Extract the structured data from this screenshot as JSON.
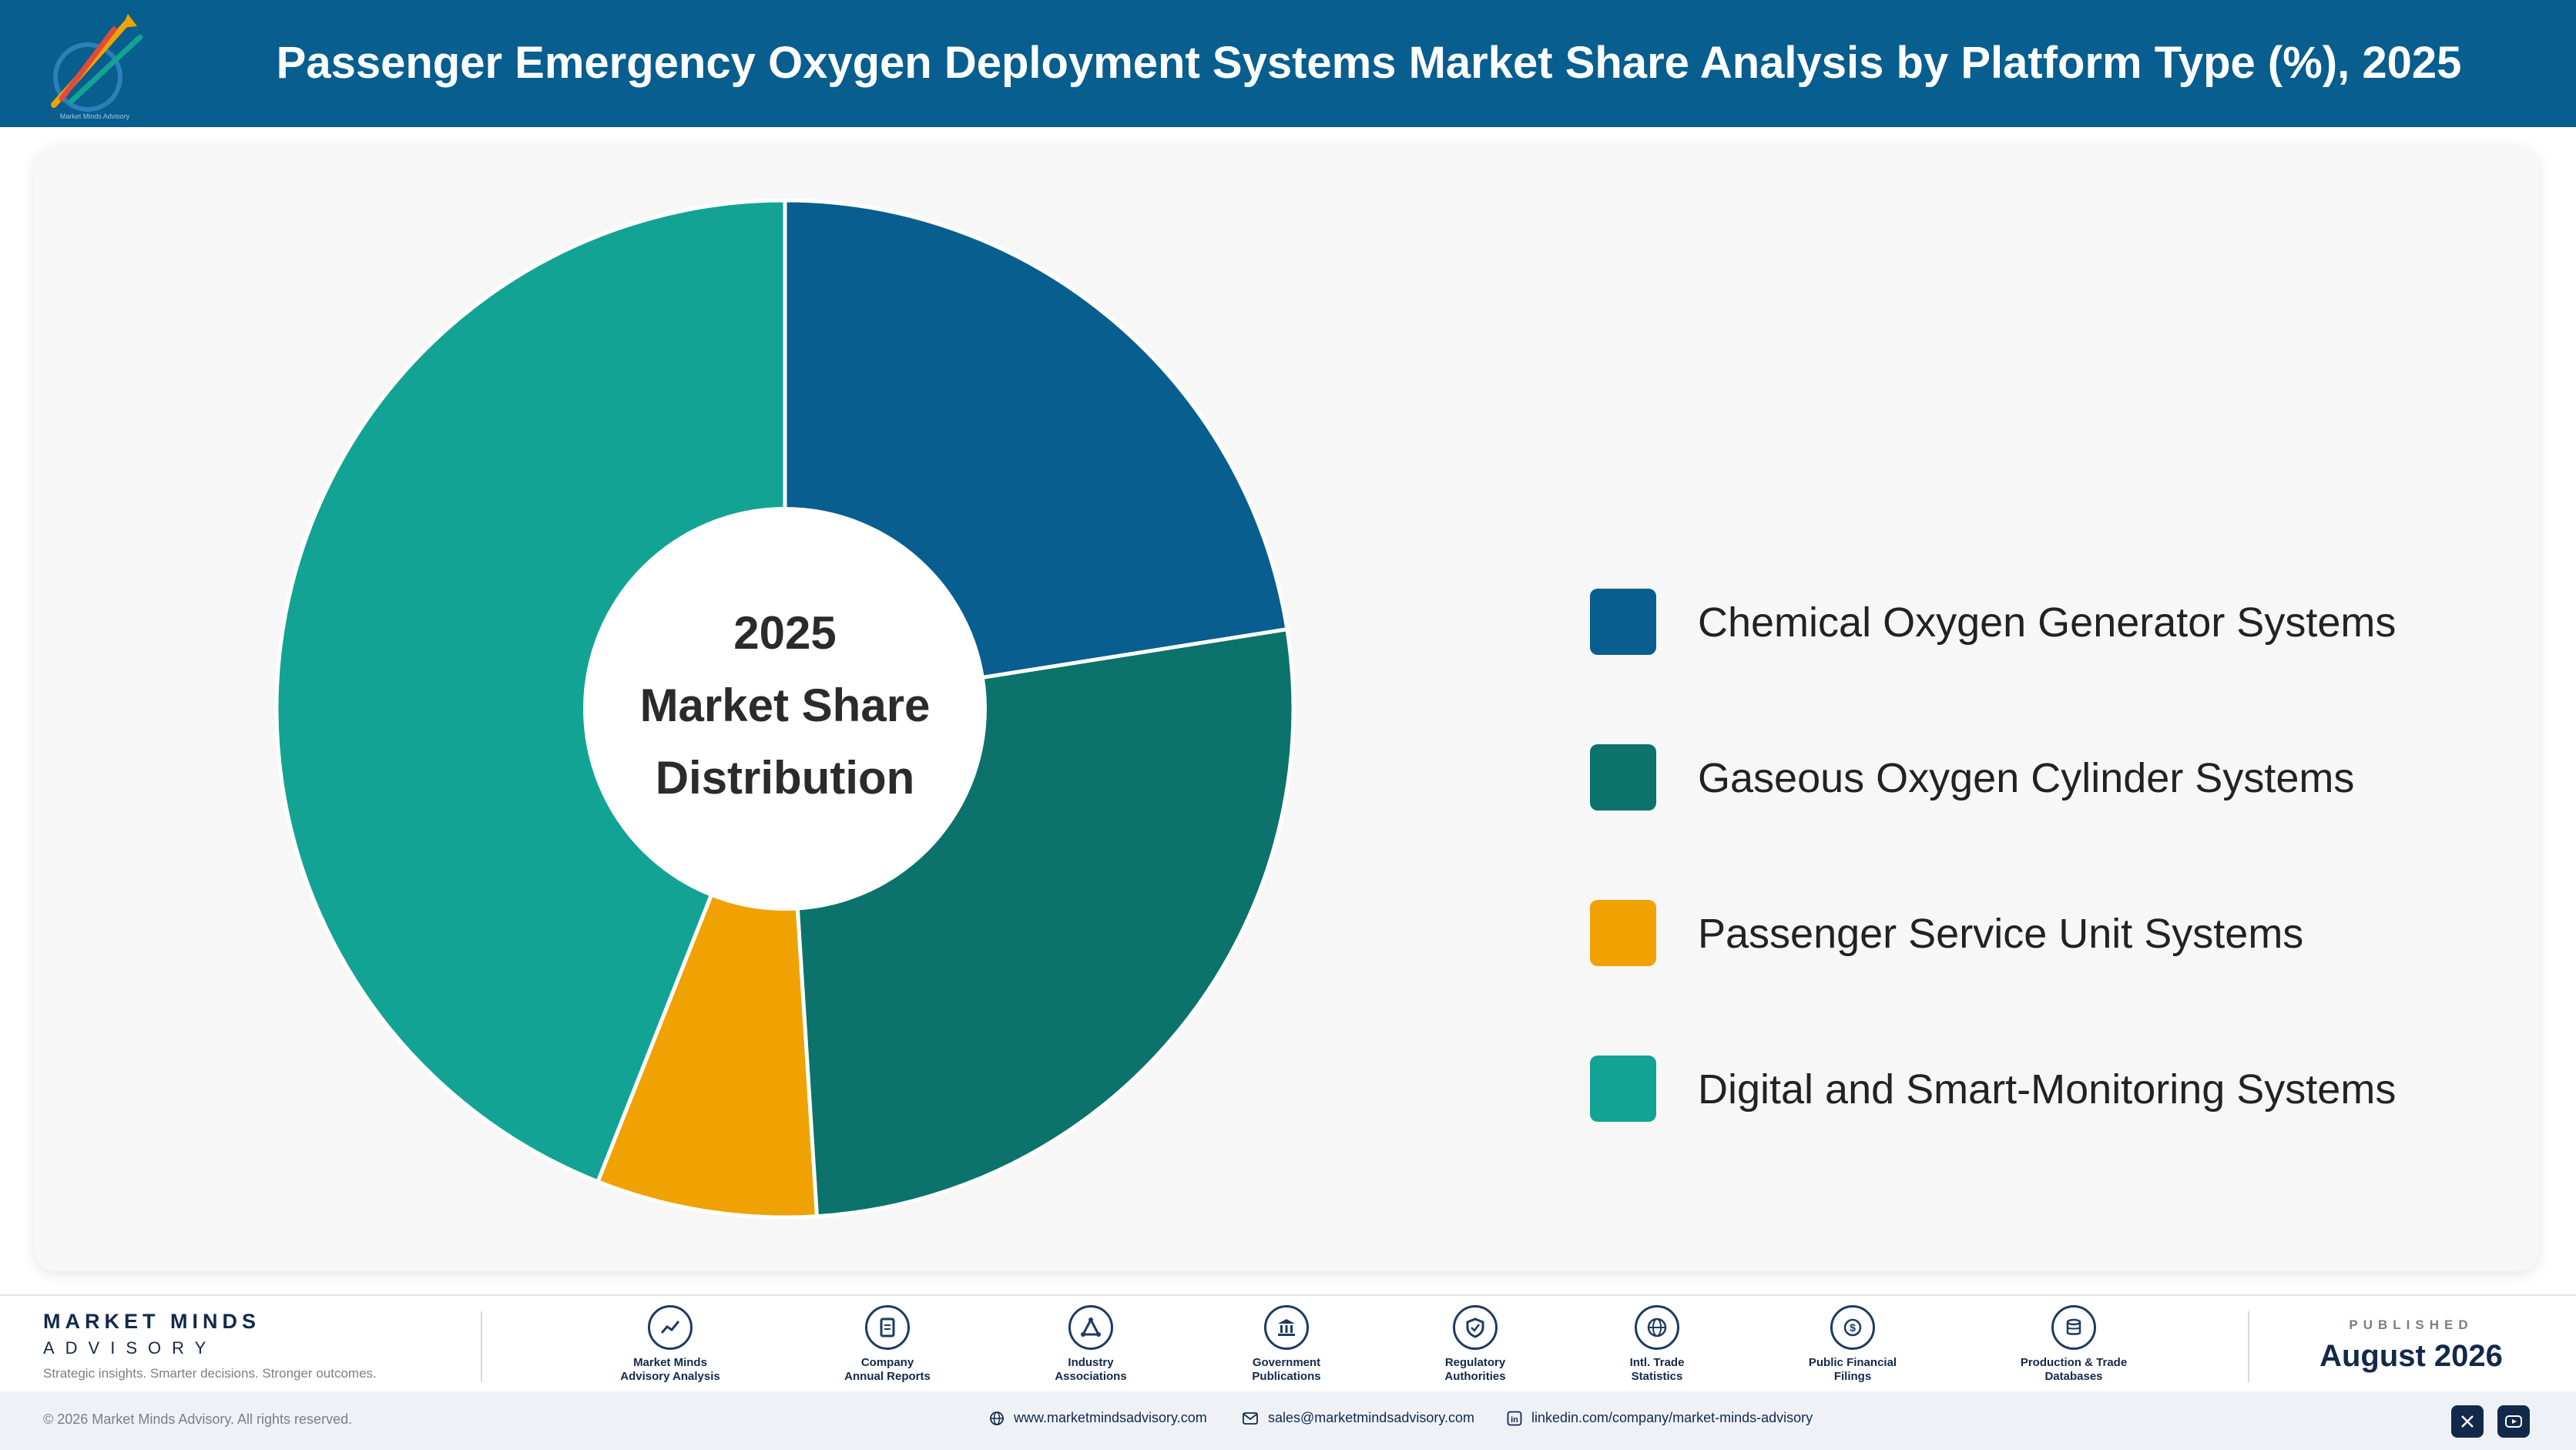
{
  "header": {
    "title": "Passenger Emergency Oxygen Deployment Systems Market Share Analysis by Platform Type (%), 2025",
    "logo_icon": "market-minds-logo-icon"
  },
  "chart_data": {
    "type": "pie",
    "title": "Passenger Emergency Oxygen Deployment Systems Market Share Analysis by Platform Type (%), 2025",
    "center_label": [
      "2025",
      "Market Share",
      "Distribution"
    ],
    "categories": [
      "Chemical Oxygen Generator Systems",
      "Gaseous Oxygen Cylinder Systems",
      "Passenger Service Unit Systems",
      "Digital and Smart-Monitoring Systems"
    ],
    "values": [
      22.5,
      26.5,
      7.0,
      44.0
    ],
    "colors": [
      "#075e8f",
      "#0b726c",
      "#f0a202",
      "#12a394"
    ],
    "legend_position": "right"
  },
  "footer": {
    "brand_name": "MARKET MINDS",
    "brand_sub": "ADVISORY",
    "brand_tagline": "Strategic insights. Smarter decisions. Stronger outcomes.",
    "sources": [
      {
        "line1": "Market Minds",
        "line2": "Advisory Analysis",
        "icon": "trend-line-icon"
      },
      {
        "line1": "Company",
        "line2": "Annual Reports",
        "icon": "document-icon"
      },
      {
        "line1": "Industry",
        "line2": "Associations",
        "icon": "network-icon"
      },
      {
        "line1": "Government",
        "line2": "Publications",
        "icon": "government-building-icon"
      },
      {
        "line1": "Regulatory",
        "line2": "Authorities",
        "icon": "shield-check-icon"
      },
      {
        "line1": "Intl. Trade",
        "line2": "Statistics",
        "icon": "globe-icon"
      },
      {
        "line1": "Public Financial",
        "line2": "Filings",
        "icon": "dollar-coin-icon"
      },
      {
        "line1": "Production & Trade",
        "line2": "Databases",
        "icon": "database-icon"
      }
    ],
    "published_label": "PUBLISHED",
    "published_date": "August 2026",
    "copyright": "© 2026 Market Minds Advisory. All rights reserved.",
    "website": "www.marketmindsadvisory.com",
    "email": "sales@marketmindsadvisory.com",
    "linkedin": "linkedin.com/company/market-minds-advisory",
    "social_icons": [
      "x-icon",
      "youtube-icon"
    ]
  }
}
